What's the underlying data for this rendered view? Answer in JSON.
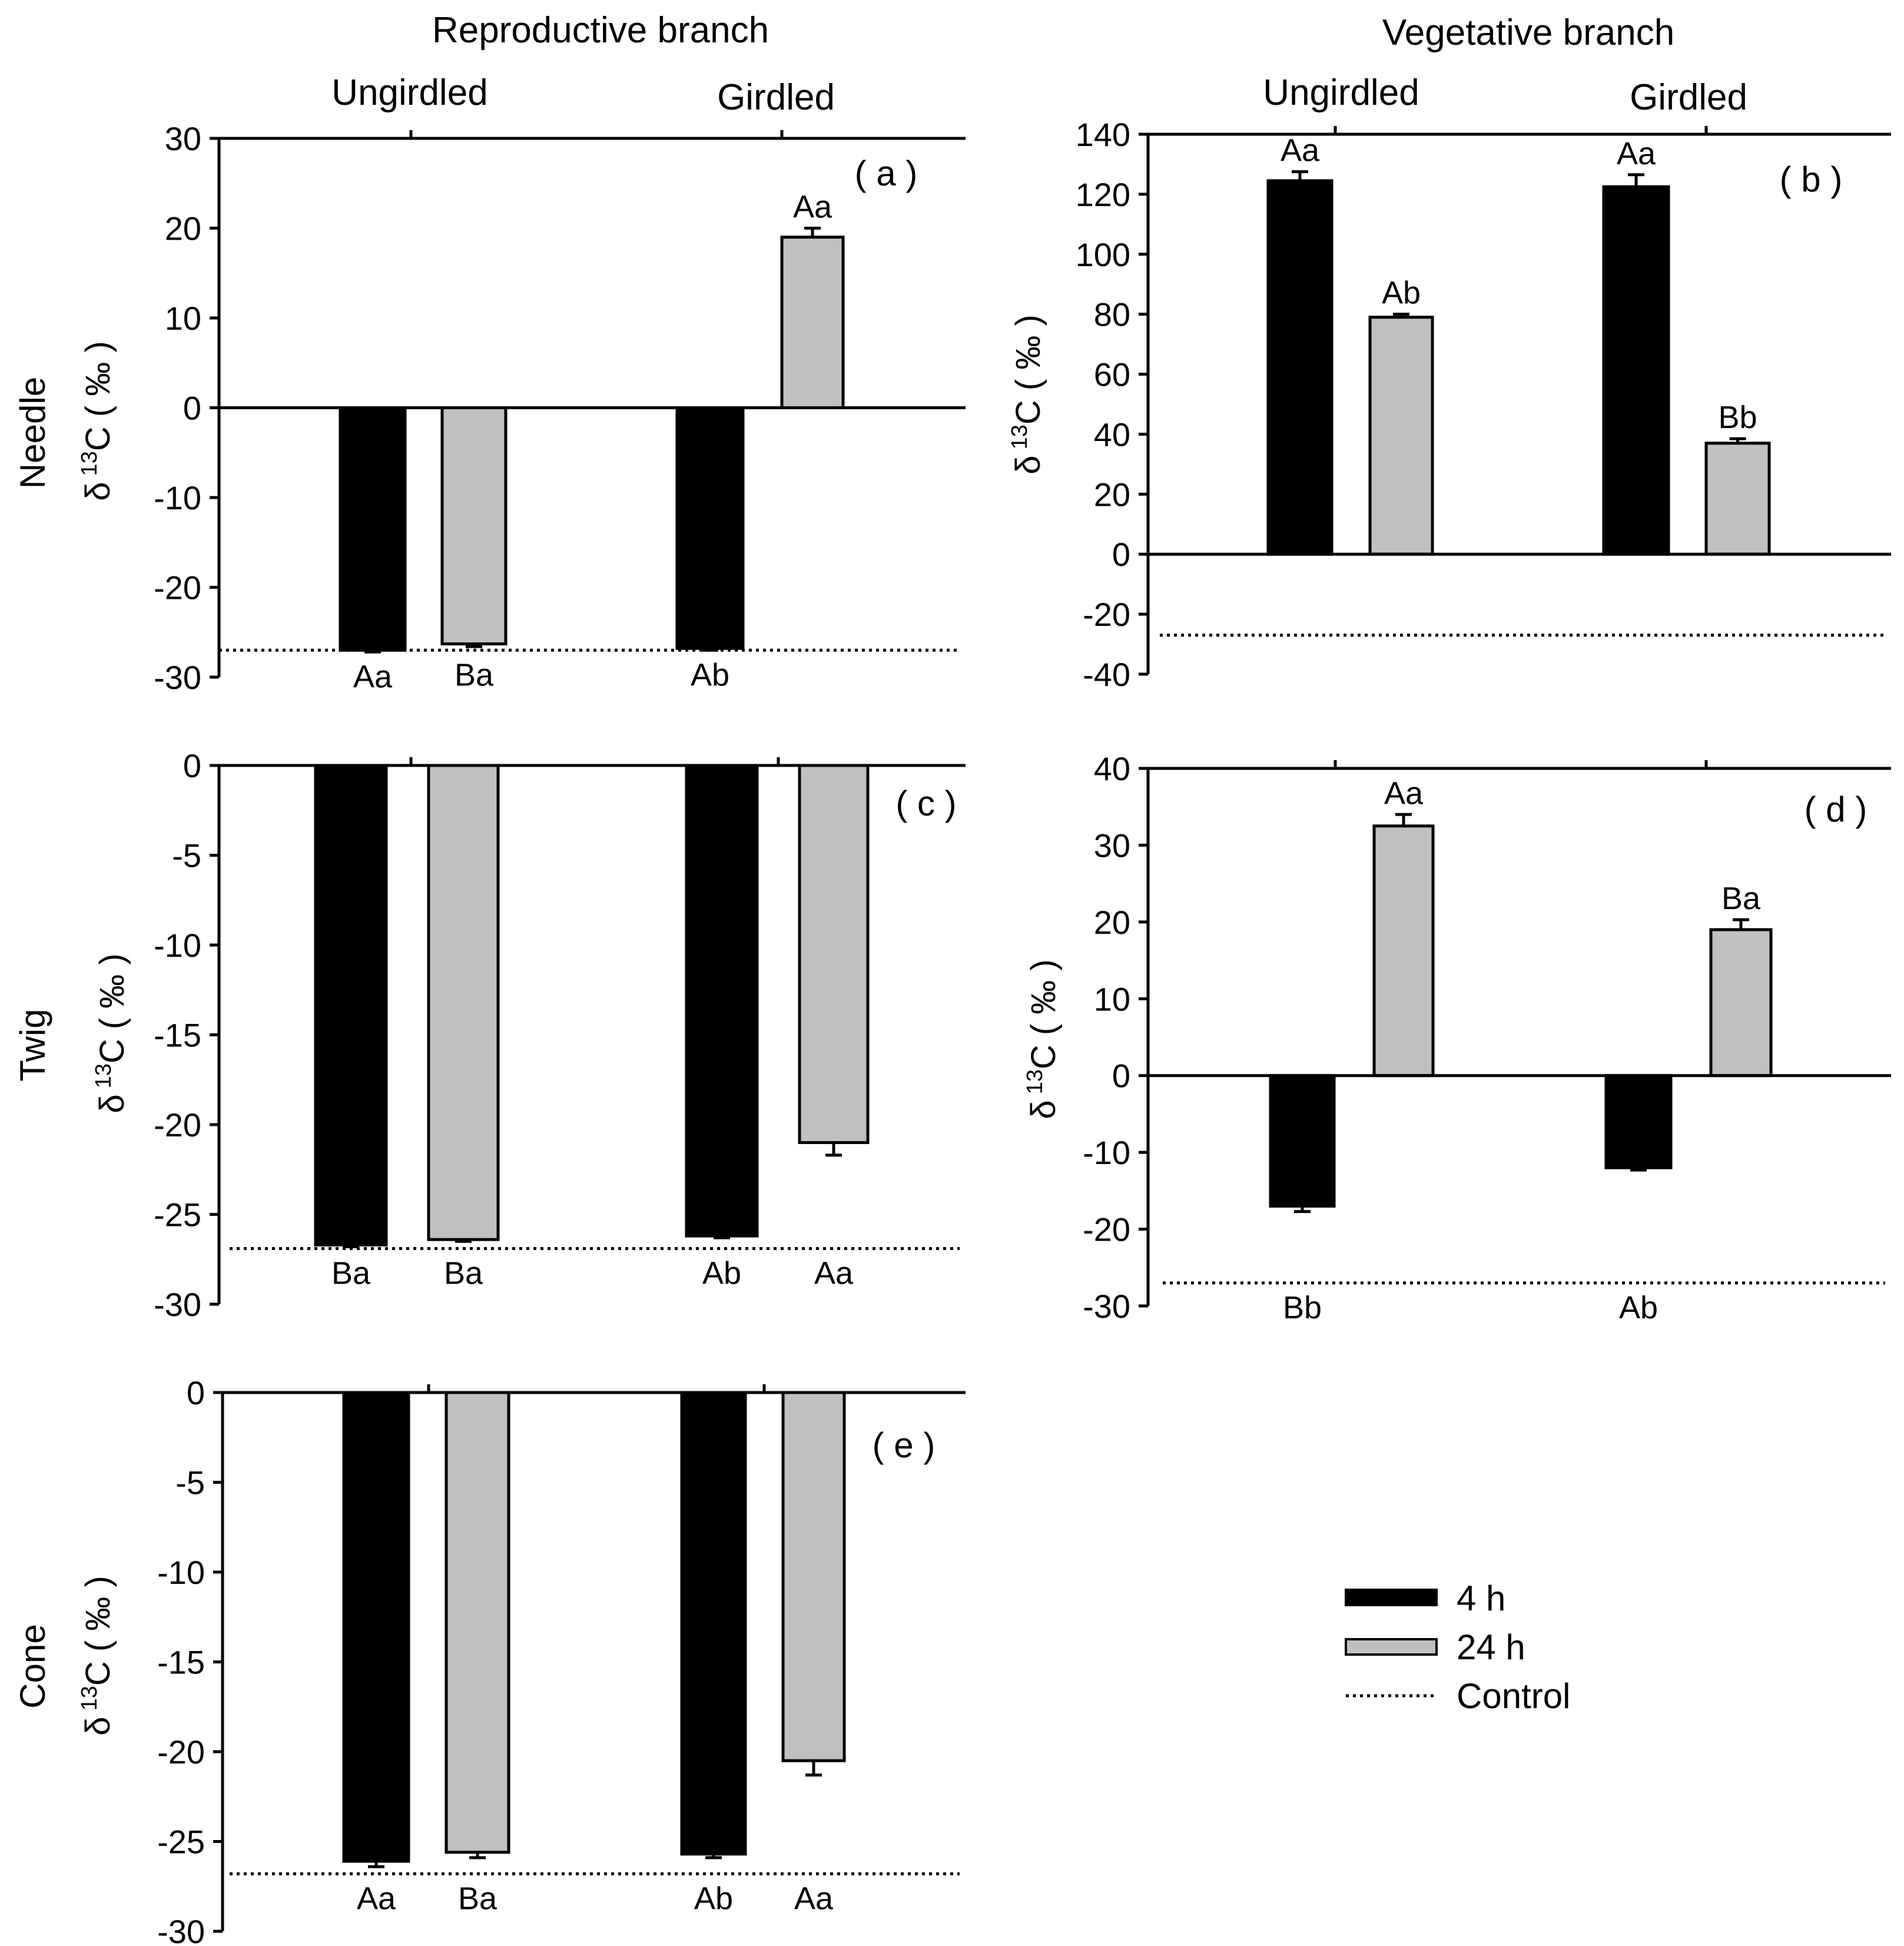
{
  "figure": {
    "titles": {
      "left": "Reproductive branch",
      "right": "Vegetative branch"
    },
    "conditions": {
      "ungirdled": "Ungirdled",
      "girdled": "Girdled"
    },
    "row_labels": {
      "needle": "Needle",
      "twig": "Twig",
      "cone": "Cone"
    },
    "y_label_parts": {
      "delta": "δ",
      "superscript": "13",
      "body": "C ( ‰ )"
    }
  },
  "legend": {
    "items": [
      {
        "label": "4 h",
        "color": "#000000",
        "style": "bar"
      },
      {
        "label": "24 h",
        "color": "#c0c0c0",
        "style": "bar"
      },
      {
        "label": "Control",
        "color": "#000000",
        "style": "dotted"
      }
    ]
  },
  "colors": {
    "h4": "#000000",
    "h24": "#c0c0c0",
    "edge": "#000000"
  },
  "chart_data": [
    {
      "type": "bar",
      "panel": "( a )",
      "branch": "Reproductive branch",
      "tissue": "Needle",
      "categories": [
        "Ungirdled",
        "Girdled"
      ],
      "ylim": [
        -30,
        30
      ],
      "yticks": [
        -30,
        -20,
        -10,
        0,
        10,
        20,
        30
      ],
      "control": -27,
      "series": [
        {
          "name": "4 h",
          "values": [
            -27,
            -26.8
          ],
          "errors": [
            0.2,
            0.2
          ],
          "labels": [
            "Aa",
            "Ab"
          ]
        },
        {
          "name": "24 h",
          "values": [
            -26.3,
            19
          ],
          "errors": [
            0.3,
            1
          ],
          "labels": [
            "Ba",
            "Aa"
          ]
        }
      ]
    },
    {
      "type": "bar",
      "panel": "( b )",
      "branch": "Vegetative branch",
      "tissue": "Needle",
      "categories": [
        "Ungirdled",
        "Girdled"
      ],
      "ylim": [
        -40,
        140
      ],
      "yticks": [
        -40,
        -20,
        0,
        20,
        40,
        60,
        80,
        100,
        120,
        140
      ],
      "control": -27,
      "series": [
        {
          "name": "4 h",
          "values": [
            124.5,
            122.5
          ],
          "errors": [
            3,
            4
          ],
          "labels": [
            "Aa",
            "Aa"
          ]
        },
        {
          "name": "24 h",
          "values": [
            79,
            37
          ],
          "errors": [
            1,
            1.5
          ],
          "labels": [
            "Ab",
            "Bb"
          ]
        }
      ]
    },
    {
      "type": "bar",
      "panel": "( c )",
      "branch": "Reproductive branch",
      "tissue": "Twig",
      "categories": [
        "Ungirdled",
        "Girdled"
      ],
      "ylim": [
        -30,
        0
      ],
      "yticks": [
        -30,
        -25,
        -20,
        -15,
        -10,
        -5,
        0
      ],
      "control": -26.9,
      "series": [
        {
          "name": "4 h",
          "values": [
            -26.7,
            -26.2
          ],
          "errors": [
            0.1,
            0.1
          ],
          "labels": [
            "Ba",
            "Ab"
          ]
        },
        {
          "name": "24 h",
          "values": [
            -26.4,
            -21
          ],
          "errors": [
            0.1,
            0.7
          ],
          "labels": [
            "Ba",
            "Aa"
          ]
        }
      ]
    },
    {
      "type": "bar",
      "panel": "( d )",
      "branch": "Vegetative branch",
      "tissue": "Twig",
      "categories": [
        "Ungirdled",
        "Girdled"
      ],
      "ylim": [
        -30,
        40
      ],
      "yticks": [
        -30,
        -20,
        -10,
        0,
        10,
        20,
        30,
        40
      ],
      "control": -27,
      "series": [
        {
          "name": "4 h",
          "values": [
            -17,
            -12
          ],
          "errors": [
            0.7,
            0.3
          ],
          "labels": [
            "Bb",
            "Ab"
          ]
        },
        {
          "name": "24 h",
          "values": [
            32.5,
            19
          ],
          "errors": [
            1.5,
            1.3
          ],
          "labels": [
            "Aa",
            "Ba"
          ]
        }
      ]
    },
    {
      "type": "bar",
      "panel": "( e )",
      "branch": "Reproductive branch",
      "tissue": "Cone",
      "categories": [
        "Ungirdled",
        "Girdled"
      ],
      "ylim": [
        -30,
        0
      ],
      "yticks": [
        -30,
        -25,
        -20,
        -15,
        -10,
        -5,
        0
      ],
      "control": -26.8,
      "series": [
        {
          "name": "4 h",
          "values": [
            -26.1,
            -25.7
          ],
          "errors": [
            0.3,
            0.2
          ],
          "labels": [
            "Aa",
            "Ab"
          ]
        },
        {
          "name": "24 h",
          "values": [
            -25.6,
            -20.5
          ],
          "errors": [
            0.3,
            0.8
          ],
          "labels": [
            "Ba",
            "Aa"
          ]
        }
      ]
    }
  ]
}
